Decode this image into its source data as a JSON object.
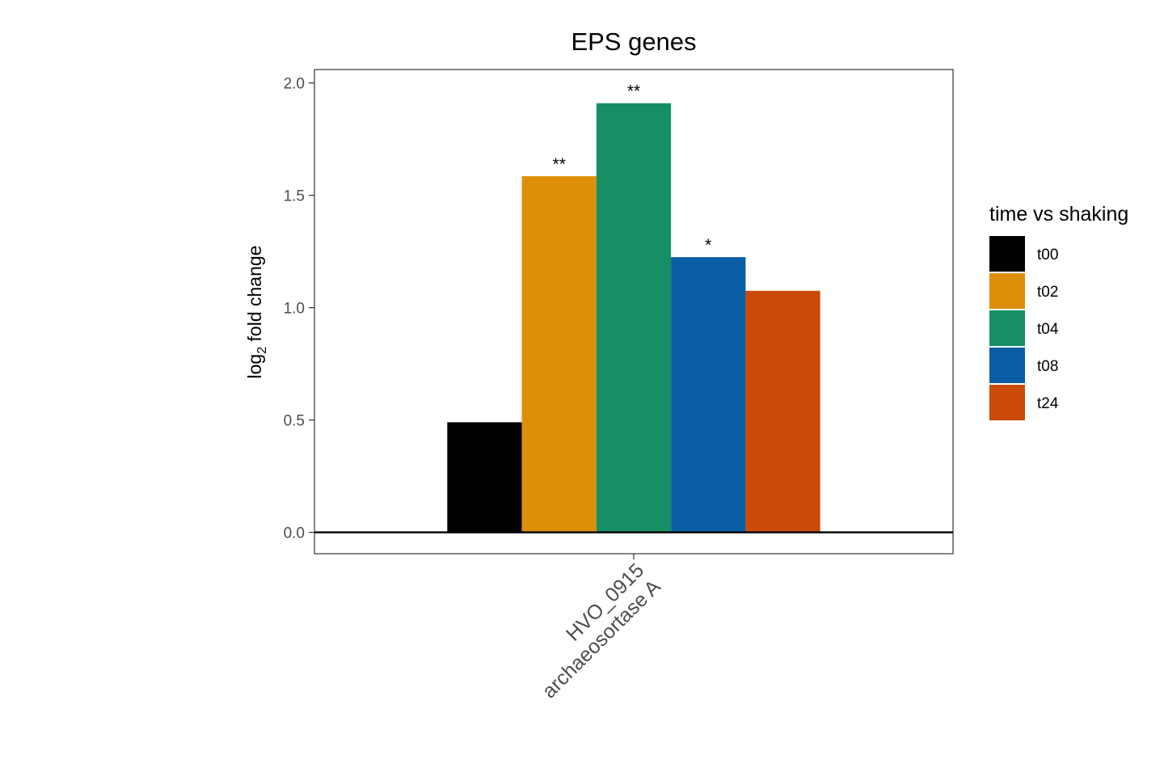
{
  "chart_data": {
    "type": "bar",
    "title": "EPS genes",
    "ylabel": {
      "main": "log",
      "sub": "2",
      "rest": " fold change"
    },
    "xlabel": "",
    "categories": [
      {
        "line1": "HVO_0915",
        "line2": "archaeosortase A"
      }
    ],
    "series": [
      {
        "name": "t00",
        "color": "#000000",
        "values": [
          0.49
        ],
        "sig": [
          ""
        ]
      },
      {
        "name": "t02",
        "color": "#DE8F0A",
        "values": [
          1.585
        ],
        "sig": [
          "**"
        ]
      },
      {
        "name": "t04",
        "color": "#168F64",
        "values": [
          1.91
        ],
        "sig": [
          "**"
        ]
      },
      {
        "name": "t08",
        "color": "#0A5EA3",
        "values": [
          1.225
        ],
        "sig": [
          "*"
        ]
      },
      {
        "name": "t24",
        "color": "#CA4A08",
        "values": [
          1.075
        ],
        "sig": [
          ""
        ]
      }
    ],
    "ylim": [
      -0.095,
      2.06
    ],
    "yticks": [
      "0.0",
      "0.5",
      "1.0",
      "1.5",
      "2.0"
    ],
    "grid": false,
    "reference_line": 0,
    "legend": {
      "title": "time vs shaking",
      "placement": "right"
    }
  }
}
